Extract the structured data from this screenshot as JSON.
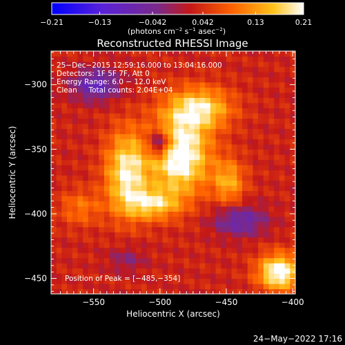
{
  "chart_data": {
    "type": "heatmap",
    "title": "Reconstructed RHESSI Image",
    "xlabel": "Heliocentric X (arcsec)",
    "ylabel": "Heliocentric Y (arcsec)",
    "xlim": [
      -582,
      -398
    ],
    "ylim": [
      -462,
      -274
    ],
    "x_ticks": [
      -550,
      -500,
      -450,
      -400
    ],
    "x_tick_labels": [
      "−550",
      "−500",
      "−450",
      "−400"
    ],
    "y_ticks": [
      -300,
      -350,
      -400,
      -450
    ],
    "y_tick_labels": [
      "−300",
      "−350",
      "−400",
      "−450"
    ],
    "colorbar": {
      "range": [
        -0.21,
        0.21
      ],
      "tick_values": [
        -0.21,
        -0.13,
        -0.042,
        0.042,
        0.13,
        0.21
      ],
      "tick_labels": [
        "−0.21",
        "−0.13",
        "−0.042",
        "0.042",
        "0.13",
        "0.21"
      ],
      "colors": [
        "#0000ff",
        "#6020d0",
        "#8a2a8a",
        "#c02020",
        "#ff6a00",
        "#ffc020",
        "#ffffff"
      ]
    },
    "units_main": "(photons cm",
    "units_sup1": "−2",
    "units_mid": " s",
    "units_sup2": "−1",
    "units_asec": " asec",
    "units_sup3": "−2",
    "units_end": ")",
    "annotations": [
      "25−Dec−2015 12:59:16.000 to 13:04:16.000",
      "Detectors: 1F 5F 7F, Att 0",
      "Energy Range: 6.0 − 12.0 keV",
      "Clean     Total counts: 2.04E+04"
    ],
    "peak_label": "Position of Peak = [−485,−354]",
    "peak": {
      "x": -485,
      "y": -354
    }
  },
  "timestamp": "24−May−2022 17:16"
}
